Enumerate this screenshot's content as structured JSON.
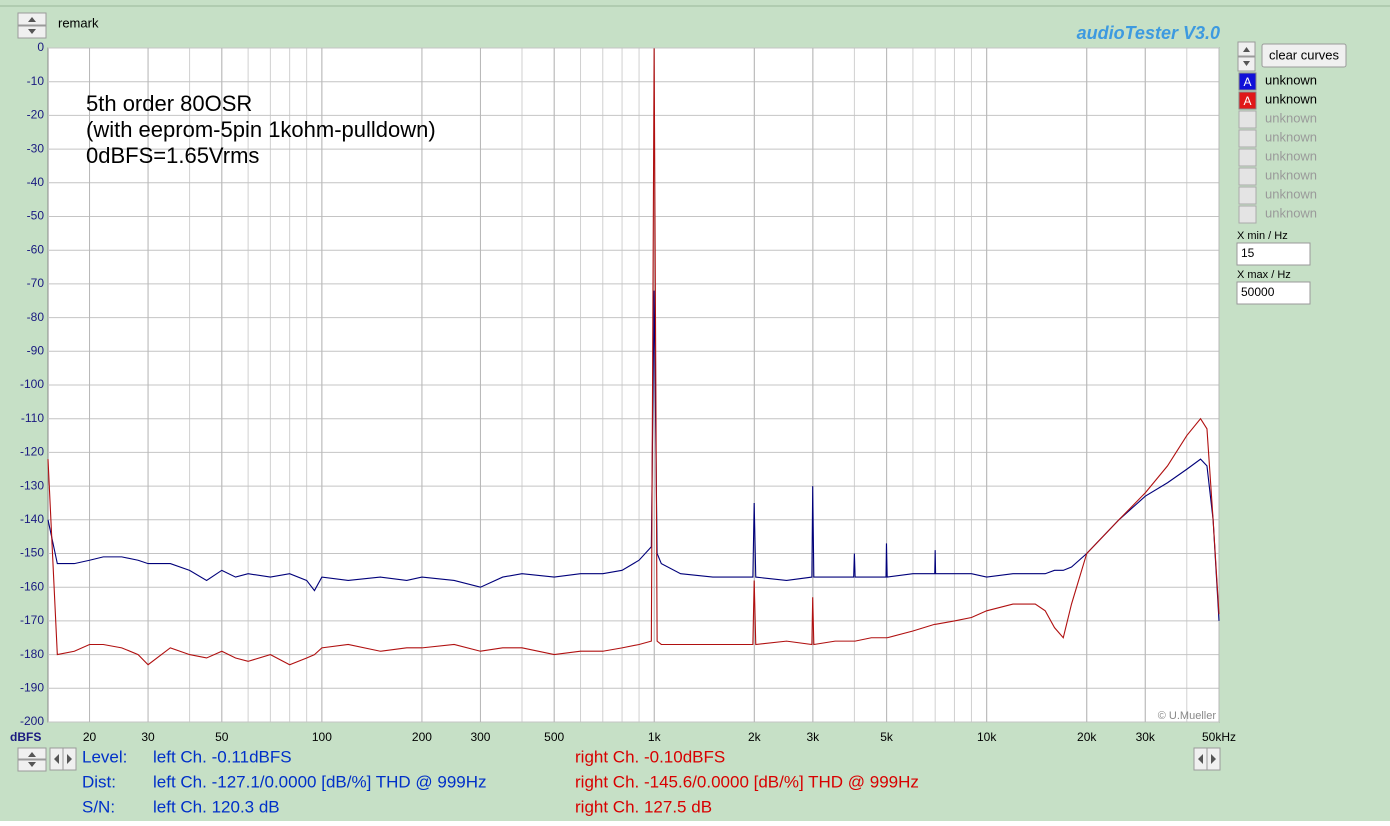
{
  "toolbar": {
    "remark": "remark",
    "app_title": "audioTester  V3.0"
  },
  "chart_data": {
    "type": "line",
    "annotation": [
      "5th order 80OSR",
      "(with eeprom-5pin 1kohm-pulldown)",
      "0dBFS=1.65Vrms"
    ],
    "y_label": "dBFS",
    "credit": "© U.Mueller",
    "xscale": "log",
    "grid": true,
    "xlim": [
      15,
      50000
    ],
    "ylim": [
      -200,
      0
    ],
    "xticks": [
      20,
      30,
      50,
      100,
      200,
      300,
      500,
      {
        "value": 1000,
        "label": "1k"
      },
      {
        "value": 2000,
        "label": "2k"
      },
      {
        "value": 3000,
        "label": "3k"
      },
      {
        "value": 5000,
        "label": "5k"
      },
      {
        "value": 10000,
        "label": "10k"
      },
      {
        "value": 20000,
        "label": "20k"
      },
      {
        "value": 30000,
        "label": "30k"
      },
      {
        "value": 50000,
        "label": "50kHz"
      }
    ],
    "yticks": [
      0,
      -10,
      -20,
      -30,
      -40,
      -50,
      -60,
      -70,
      -80,
      -90,
      -100,
      -110,
      -120,
      -130,
      -140,
      -150,
      -160,
      -170,
      -180,
      -190,
      -200
    ],
    "x": [
      15,
      16,
      18,
      20,
      22,
      25,
      28,
      30,
      35,
      40,
      45,
      50,
      55,
      60,
      70,
      80,
      90,
      95,
      100,
      120,
      150,
      180,
      200,
      250,
      300,
      350,
      400,
      500,
      600,
      700,
      800,
      900,
      980,
      999,
      1020,
      1050,
      1200,
      1500,
      1800,
      1980,
      1998,
      2020,
      2500,
      2980,
      2997,
      3020,
      3500,
      3980,
      4000,
      4020,
      4500,
      4980,
      4995,
      5020,
      6000,
      6980,
      7000,
      7020,
      8000,
      9000,
      10000,
      12000,
      14000,
      15000,
      16000,
      17000,
      18000,
      20000,
      25000,
      30000,
      35000,
      40000,
      44000,
      46000,
      48000,
      50000
    ],
    "series": [
      {
        "name": "unknown",
        "color": "#00007a",
        "values": [
          -140,
          -153,
          -153,
          -152,
          -151,
          -151,
          -152,
          -153,
          -153,
          -155,
          -158,
          -155,
          -157,
          -156,
          -157,
          -156,
          -158,
          -161,
          -157,
          -158,
          -157,
          -158,
          -157,
          -158,
          -160,
          -157,
          -156,
          -157,
          -156,
          -156,
          -155,
          -152,
          -148,
          -72,
          -150,
          -153,
          -156,
          -157,
          -157,
          -157,
          -135,
          -157,
          -158,
          -157,
          -130,
          -157,
          -157,
          -157,
          -150,
          -157,
          -157,
          -157,
          -147,
          -157,
          -156,
          -156,
          -149,
          -156,
          -156,
          -156,
          -157,
          -156,
          -156,
          -156,
          -155,
          -155,
          -154,
          -150,
          -140,
          -133,
          -129,
          -125,
          -122,
          -124,
          -140,
          -170
        ]
      },
      {
        "name": "unknown",
        "color": "#b01010",
        "values": [
          -122,
          -180,
          -179,
          -177,
          -177,
          -178,
          -180,
          -183,
          -178,
          -180,
          -181,
          -179,
          -181,
          -182,
          -180,
          -183,
          -181,
          -180,
          -178,
          -177,
          -179,
          -178,
          -178,
          -177,
          -179,
          -178,
          -178,
          -180,
          -179,
          -179,
          -178,
          -177,
          -176,
          -0.1,
          -176,
          -177,
          -177,
          -177,
          -177,
          -177,
          -158,
          -177,
          -176,
          -177,
          -163,
          -177,
          -176,
          -176,
          -176,
          -176,
          -175,
          -175,
          -175,
          -175,
          -173,
          -171,
          -171,
          -171,
          -170,
          -169,
          -167,
          -165,
          -165,
          -167,
          -172,
          -175,
          -165,
          -150,
          -140,
          -132,
          -124,
          -115,
          -110,
          -113,
          -140,
          -168
        ]
      }
    ]
  },
  "side_panel": {
    "clear_button": "clear curves",
    "curve_letter": "A",
    "inactive_curves": [
      "unknown",
      "unknown",
      "unknown",
      "unknown",
      "unknown",
      "unknown"
    ],
    "xmin_label": "X min / Hz",
    "xmax_label": "X max / Hz"
  },
  "results": [
    {
      "label": "Level:",
      "left": "left Ch. -0.11dBFS",
      "right": "right Ch. -0.10dBFS"
    },
    {
      "label": "Dist:",
      "left": "left Ch. -127.1/0.0000 [dB/%] THD @ 999Hz",
      "right": "right Ch. -145.6/0.0000 [dB/%] THD @ 999Hz"
    },
    {
      "label": "S/N:",
      "left": "left Ch. 120.3 dB",
      "right": "right Ch. 127.5 dB"
    }
  ]
}
